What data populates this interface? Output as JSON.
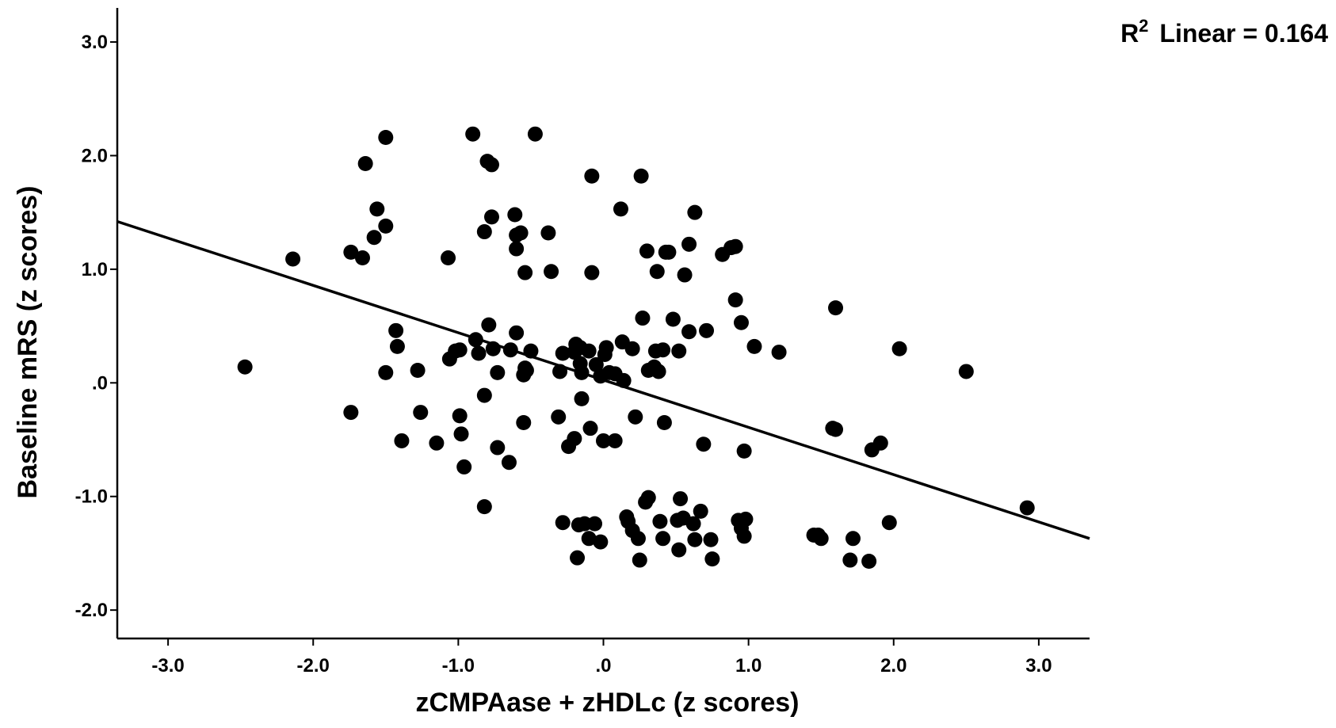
{
  "chart_data": {
    "type": "scatter",
    "title": "",
    "xlabel": "zCMPAase + zHDLc (z scores)",
    "ylabel": "Baseline mRS (z scores)",
    "xlim": [
      -3.35,
      3.35
    ],
    "ylim": [
      -2.25,
      3.3
    ],
    "x_ticks": [
      -3.0,
      -2.0,
      -1.0,
      0.0,
      1.0,
      2.0,
      3.0
    ],
    "x_tick_labels": [
      "-3.0",
      "-2.0",
      "-1.0",
      ".0",
      "1.0",
      "2.0",
      "3.0"
    ],
    "y_ticks": [
      -2.0,
      -1.0,
      0.0,
      1.0,
      2.0,
      3.0
    ],
    "y_tick_labels": [
      "-2.0",
      "-1.0",
      ".0",
      "1.0",
      "2.0",
      "3.0"
    ],
    "grid": false,
    "annotation": {
      "prefix": "R",
      "superscript": "2",
      "label": "Linear = 0.164"
    },
    "fit_line": {
      "type": "linear",
      "x": [
        -3.35,
        3.35
      ],
      "y": [
        1.42,
        -1.37
      ]
    },
    "point_color": "#000000",
    "points": [
      [
        -2.47,
        0.14
      ],
      [
        -2.14,
        1.09
      ],
      [
        -1.74,
        1.15
      ],
      [
        -1.66,
        1.1
      ],
      [
        -1.64,
        1.93
      ],
      [
        -1.56,
        1.53
      ],
      [
        -1.58,
        1.28
      ],
      [
        -1.5,
        1.38
      ],
      [
        -1.5,
        2.16
      ],
      [
        -1.74,
        -0.26
      ],
      [
        -1.43,
        0.46
      ],
      [
        -1.42,
        0.32
      ],
      [
        -1.5,
        0.09
      ],
      [
        -1.28,
        0.11
      ],
      [
        -1.26,
        -0.26
      ],
      [
        -1.39,
        -0.51
      ],
      [
        -1.15,
        -0.53
      ],
      [
        -1.07,
        1.1
      ],
      [
        -1.06,
        0.21
      ],
      [
        -1.02,
        0.28
      ],
      [
        -0.99,
        0.29
      ],
      [
        -0.99,
        -0.29
      ],
      [
        -0.98,
        -0.45
      ],
      [
        -0.96,
        -0.74
      ],
      [
        -0.9,
        2.19
      ],
      [
        -0.88,
        0.38
      ],
      [
        -0.86,
        0.26
      ],
      [
        -0.82,
        1.33
      ],
      [
        -0.8,
        1.95
      ],
      [
        -0.77,
        1.92
      ],
      [
        -0.77,
        1.46
      ],
      [
        -0.79,
        0.51
      ],
      [
        -0.82,
        -0.11
      ],
      [
        -0.76,
        0.3
      ],
      [
        -0.73,
        0.09
      ],
      [
        -0.73,
        -0.57
      ],
      [
        -0.65,
        -0.7
      ],
      [
        -0.82,
        -1.09
      ],
      [
        -0.61,
        1.48
      ],
      [
        -0.6,
        1.3
      ],
      [
        -0.57,
        1.32
      ],
      [
        -0.6,
        1.18
      ],
      [
        -0.54,
        0.97
      ],
      [
        -0.6,
        0.44
      ],
      [
        -0.64,
        0.29
      ],
      [
        -0.54,
        0.13
      ],
      [
        -0.55,
        0.07
      ],
      [
        -0.53,
        0.11
      ],
      [
        -0.5,
        0.28
      ],
      [
        -0.47,
        2.19
      ],
      [
        -0.38,
        1.32
      ],
      [
        -0.36,
        0.98
      ],
      [
        -0.55,
        -0.35
      ],
      [
        -0.31,
        -0.3
      ],
      [
        -0.3,
        0.1
      ],
      [
        -0.28,
        0.26
      ],
      [
        -0.24,
        -0.56
      ],
      [
        -0.2,
        -0.49
      ],
      [
        -0.2,
        0.27
      ],
      [
        -0.19,
        0.34
      ],
      [
        -0.16,
        0.17
      ],
      [
        -0.15,
        0.09
      ],
      [
        -0.16,
        0.31
      ],
      [
        -0.15,
        -0.14
      ],
      [
        -0.1,
        0.28
      ],
      [
        -0.08,
        1.82
      ],
      [
        -0.08,
        0.97
      ],
      [
        -0.09,
        -0.4
      ],
      [
        -0.05,
        0.16
      ],
      [
        -0.02,
        0.06
      ],
      [
        0.01,
        0.25
      ],
      [
        0.02,
        0.31
      ],
      [
        0.04,
        0.09
      ],
      [
        0.08,
        0.08
      ],
      [
        0.0,
        -0.51
      ],
      [
        0.08,
        -0.51
      ],
      [
        0.12,
        1.53
      ],
      [
        0.13,
        0.36
      ],
      [
        0.14,
        0.02
      ],
      [
        0.2,
        0.3
      ],
      [
        0.22,
        -0.3
      ],
      [
        0.26,
        1.82
      ],
      [
        0.27,
        0.57
      ],
      [
        0.3,
        1.16
      ],
      [
        0.31,
        0.11
      ],
      [
        0.35,
        0.14
      ],
      [
        0.36,
        0.28
      ],
      [
        0.37,
        0.98
      ],
      [
        0.38,
        0.1
      ],
      [
        0.41,
        0.29
      ],
      [
        0.42,
        -0.35
      ],
      [
        0.43,
        1.15
      ],
      [
        0.45,
        1.15
      ],
      [
        0.48,
        0.56
      ],
      [
        0.52,
        0.28
      ],
      [
        0.56,
        0.95
      ],
      [
        0.59,
        1.22
      ],
      [
        0.59,
        0.45
      ],
      [
        0.63,
        1.5
      ],
      [
        0.71,
        0.46
      ],
      [
        0.69,
        -0.54
      ],
      [
        0.82,
        1.13
      ],
      [
        0.88,
        1.19
      ],
      [
        0.91,
        1.2
      ],
      [
        0.91,
        0.73
      ],
      [
        0.95,
        0.53
      ],
      [
        1.04,
        0.32
      ],
      [
        1.21,
        0.27
      ],
      [
        0.97,
        -0.6
      ],
      [
        1.6,
        0.66
      ],
      [
        1.58,
        -0.4
      ],
      [
        1.6,
        -0.41
      ],
      [
        1.85,
        -0.59
      ],
      [
        1.91,
        -0.53
      ],
      [
        2.04,
        0.3
      ],
      [
        2.5,
        0.1
      ],
      [
        2.92,
        -1.1
      ],
      [
        -0.28,
        -1.23
      ],
      [
        -0.17,
        -1.25
      ],
      [
        -0.13,
        -1.24
      ],
      [
        -0.06,
        -1.24
      ],
      [
        -0.1,
        -1.37
      ],
      [
        -0.02,
        -1.4
      ],
      [
        -0.18,
        -1.54
      ],
      [
        0.16,
        -1.18
      ],
      [
        0.17,
        -1.22
      ],
      [
        0.2,
        -1.3
      ],
      [
        0.24,
        -1.37
      ],
      [
        0.25,
        -1.56
      ],
      [
        0.29,
        -1.05
      ],
      [
        0.31,
        -1.01
      ],
      [
        0.39,
        -1.22
      ],
      [
        0.41,
        -1.37
      ],
      [
        0.51,
        -1.21
      ],
      [
        0.53,
        -1.02
      ],
      [
        0.55,
        -1.19
      ],
      [
        0.52,
        -1.47
      ],
      [
        0.62,
        -1.24
      ],
      [
        0.63,
        -1.38
      ],
      [
        0.67,
        -1.13
      ],
      [
        0.74,
        -1.38
      ],
      [
        0.75,
        -1.55
      ],
      [
        0.93,
        -1.21
      ],
      [
        0.95,
        -1.28
      ],
      [
        0.97,
        -1.35
      ],
      [
        0.98,
        -1.2
      ],
      [
        1.45,
        -1.34
      ],
      [
        1.48,
        -1.34
      ],
      [
        1.5,
        -1.37
      ],
      [
        1.72,
        -1.37
      ],
      [
        1.7,
        -1.56
      ],
      [
        1.83,
        -1.57
      ],
      [
        1.97,
        -1.23
      ]
    ]
  }
}
